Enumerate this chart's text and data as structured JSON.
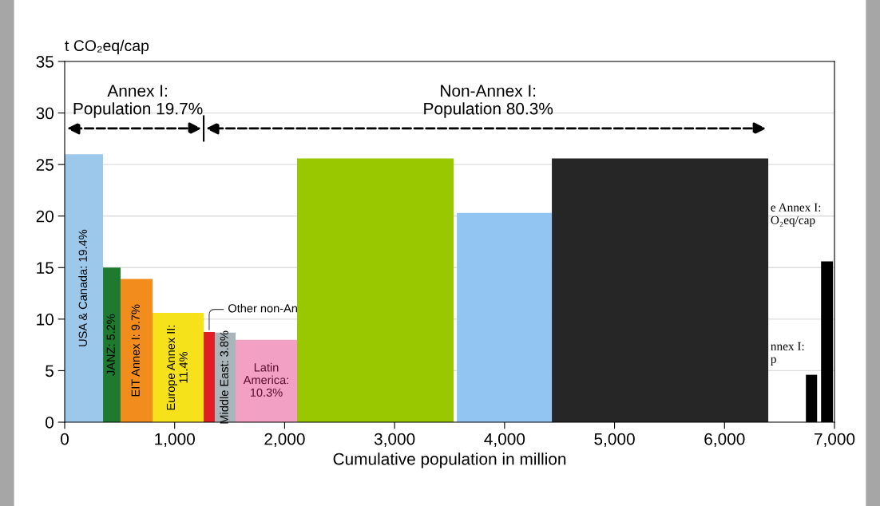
{
  "chart_data": {
    "type": "histogram",
    "ylabel": "t CO₂eq/cap",
    "xlabel": "Cumulative population in million",
    "bins": [
      0,
      349,
      508,
      799,
      1264,
      1365,
      1554,
      2113,
      3537,
      3566,
      4430,
      6398,
      6740,
      6842,
      6878,
      6986
    ],
    "values": [
      26,
      15,
      13.9,
      10.6,
      8.75,
      8.7,
      8.0,
      25.6,
      null,
      20.3,
      25.6,
      null,
      4.6,
      null,
      15.6
    ],
    "colors": [
      "#9cc8ec",
      "#1e7a2e",
      "#f28c1c",
      "#f5e21a",
      "#e01e24",
      "#a9b4bb",
      "#f2a0c4",
      "#99c800",
      null,
      "#92c5f2",
      "#262626",
      null,
      "#000000",
      null,
      "#000000"
    ],
    "xlim": [
      0,
      7000
    ],
    "ylim": [
      0,
      35
    ],
    "xticks": [
      0,
      {
        "value": 1000,
        "label": "1,000"
      },
      {
        "value": 2000,
        "label": "2,000"
      },
      {
        "value": 3000,
        "label": "3,000"
      },
      {
        "value": 4000,
        "label": "4,000"
      },
      {
        "value": 5000,
        "label": "5,000"
      },
      {
        "value": 6000,
        "label": "6,000"
      },
      {
        "value": 7000,
        "label": "7,000"
      }
    ],
    "yticks": [
      0,
      5,
      10,
      15,
      20,
      25,
      30,
      35
    ],
    "grid": "y",
    "annotations": [
      "USA & Canada: 19.4%",
      "JANZ: 5.2%",
      "EIT Annex I: 9.7%",
      "Europe Annex II:\n11.4%",
      "Middle East: 3.8%",
      "Latin\nAmerica:\n10.3%",
      {
        "text": "Other non-An",
        "x": 1314,
        "y": 8.75
      },
      "Annex I:\nPopulation 19.7%",
      "Non-Annex I:\nPopulation 80.3%",
      "e Annex I:\nO₂eq/cap",
      "nnex I:\np"
    ]
  }
}
